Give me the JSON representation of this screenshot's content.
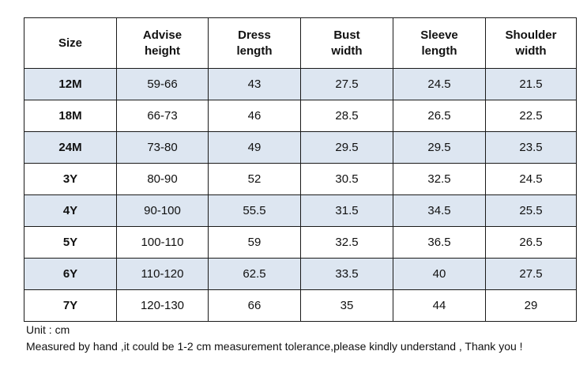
{
  "table": {
    "headers": [
      [
        "Size"
      ],
      [
        "Advise",
        "height"
      ],
      [
        "Dress",
        "length"
      ],
      [
        "Bust",
        "width"
      ],
      [
        "Sleeve",
        "length"
      ],
      [
        "Shoulder",
        "width"
      ]
    ],
    "rows": [
      [
        "12M",
        "59-66",
        "43",
        "27.5",
        "24.5",
        "21.5"
      ],
      [
        "18M",
        "66-73",
        "46",
        "28.5",
        "26.5",
        "22.5"
      ],
      [
        "24M",
        "73-80",
        "49",
        "29.5",
        "29.5",
        "23.5"
      ],
      [
        "3Y",
        "80-90",
        "52",
        "30.5",
        "32.5",
        "24.5"
      ],
      [
        "4Y",
        "90-100",
        "55.5",
        "31.5",
        "34.5",
        "25.5"
      ],
      [
        "5Y",
        "100-110",
        "59",
        "32.5",
        "36.5",
        "26.5"
      ],
      [
        "6Y",
        "110-120",
        "62.5",
        "33.5",
        "40",
        "27.5"
      ],
      [
        "7Y",
        "120-130",
        "66",
        "35",
        "44",
        "29"
      ]
    ],
    "shaded_row_color": "#dde6f1"
  },
  "notes": {
    "unit": "Unit : cm",
    "tolerance": "Measured by hand ,it could be 1-2 cm measurement tolerance,please kindly understand , Thank you !"
  }
}
